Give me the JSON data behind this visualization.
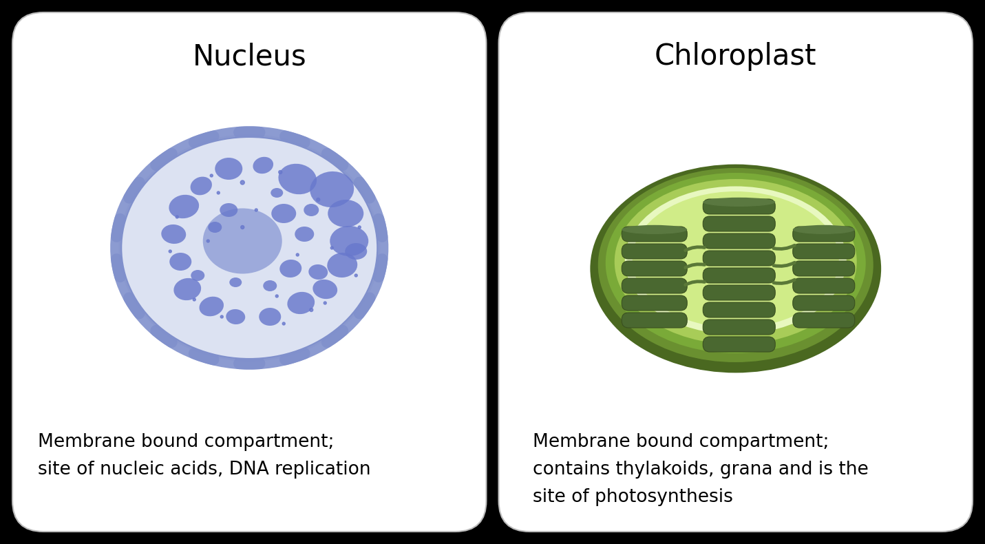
{
  "bg_color": "#000000",
  "card_bg": "#ffffff",
  "nucleus_title": "Nucleus",
  "nucleus_desc_line1": "Membrane bound compartment;",
  "nucleus_desc_line2": "site of nucleic acids, DNA replication",
  "nucleus_outer_fill": "#dce2f2",
  "nucleus_outer_edge": "#8090cc",
  "nucleus_nucleolus_fill": "#8898d4",
  "nucleus_blob_color": "#6878cc",
  "nucleus_dot_color": "#6878cc",
  "chloroplast_title": "Chloroplast",
  "chloroplast_desc_line1": "Membrane bound compartment;",
  "chloroplast_desc_line2": "contains thylakoids, grana and is the",
  "chloroplast_desc_line3": "site of photosynthesis",
  "chloro_outer_dark": "#4a6820",
  "chloro_outer_mid": "#6a9030",
  "chloro_mid_green": "#7aaa38",
  "chloro_inner_fill": "#a8cc58",
  "chloro_light_fill": "#c8e878",
  "chloro_white_ring": "#e8f8c0",
  "chloro_stroma": "#d0ec88",
  "chloro_thylakoid_fill": "#4a6830",
  "chloro_thylakoid_top": "#5a7840",
  "chloro_thylakoid_edge": "#3a5020",
  "chloro_lamella": "#5a7838",
  "title_fontsize": 30,
  "desc_fontsize": 19
}
